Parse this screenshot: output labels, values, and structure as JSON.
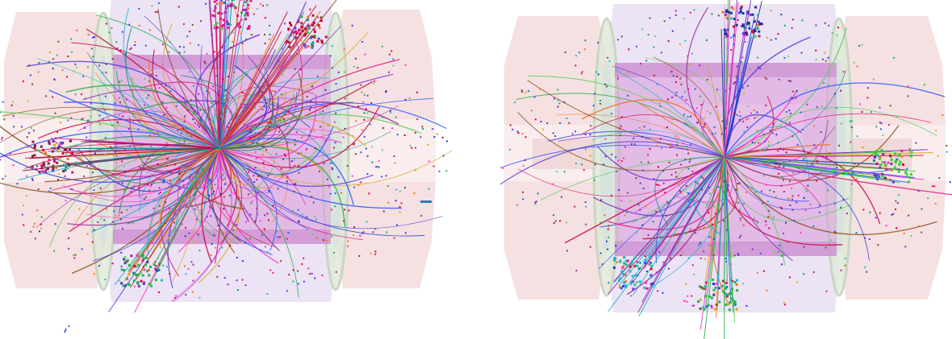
{
  "panels": [
    {
      "id": "left",
      "icon": "collision-event-display",
      "n_tracks": 170,
      "n_hits": 900,
      "seed": 11,
      "jets": [
        {
          "dir": [
            0.06,
            -1.0
          ],
          "color": "#e0197d"
        },
        {
          "dir": [
            -0.45,
            0.85
          ],
          "color": "#2ab04a"
        },
        {
          "dir": [
            0.5,
            -0.85
          ],
          "color": "#c8102e"
        },
        {
          "dir": [
            -0.95,
            0.05
          ],
          "color": "#8b1a4a"
        }
      ]
    },
    {
      "id": "right",
      "icon": "collision-event-display",
      "n_tracks": 70,
      "n_hits": 700,
      "seed": 29,
      "jets": [
        {
          "dir": [
            0.1,
            -1.0
          ],
          "color": "#1f2f9e"
        },
        {
          "dir": [
            -0.55,
            0.85
          ],
          "color": "#20b7c8"
        },
        {
          "dir": [
            -0.05,
            1.0
          ],
          "color": "#2ab04a"
        },
        {
          "dir": [
            0.85,
            0.05
          ],
          "color": "#30d030"
        }
      ]
    }
  ],
  "palette": [
    "#e0197d",
    "#c8102e",
    "#7a2cc9",
    "#1d3fd8",
    "#20b7c8",
    "#2ab04a",
    "#d9a514",
    "#8b4a1a",
    "#ff33cc",
    "#3355ff",
    "#66cc66",
    "#ee7722",
    "#9e2a9e",
    "#0b8a8a",
    "#cc0044",
    "#5a3fd8"
  ]
}
